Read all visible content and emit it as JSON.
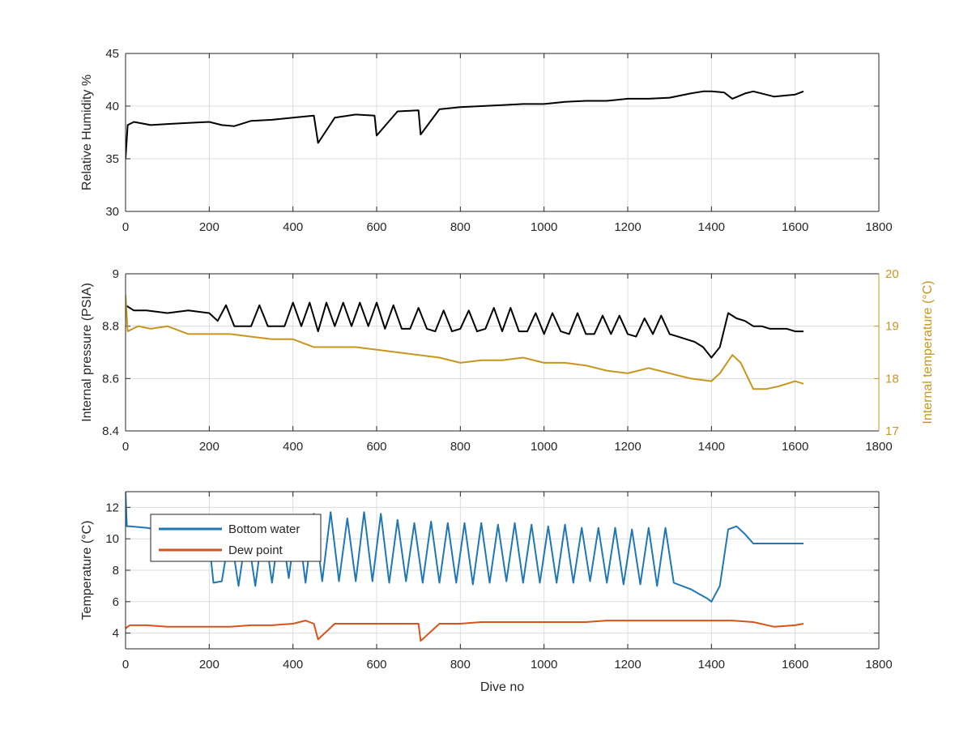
{
  "colors": {
    "axis": "#262626",
    "grid": "#dcdcdc",
    "black": "#000000",
    "gold": "#c8961e",
    "blue": "#1f77b4",
    "orange": "#d95319"
  },
  "chart_data": [
    {
      "type": "line",
      "xlabel": "",
      "ylabel": "Relative Humidity %",
      "xlim": [
        0,
        1800
      ],
      "ylim": [
        30,
        45
      ],
      "xticks": [
        "0",
        "200",
        "400",
        "600",
        "800",
        "1000",
        "1200",
        "1400",
        "1600",
        "1800"
      ],
      "yticks": [
        "30",
        "35",
        "40",
        "45"
      ],
      "grid": true,
      "series": [
        {
          "color": "#000000",
          "x": [
            0,
            5,
            20,
            60,
            100,
            150,
            200,
            230,
            260,
            300,
            350,
            400,
            450,
            460,
            500,
            550,
            595,
            600,
            650,
            700,
            705,
            750,
            800,
            850,
            900,
            950,
            1000,
            1050,
            1100,
            1150,
            1200,
            1250,
            1300,
            1350,
            1380,
            1400,
            1430,
            1450,
            1480,
            1500,
            1550,
            1600,
            1620
          ],
          "y": [
            35,
            38.2,
            38.5,
            38.2,
            38.3,
            38.4,
            38.5,
            38.2,
            38.1,
            38.6,
            38.7,
            38.9,
            39.1,
            36.5,
            38.9,
            39.2,
            39.1,
            37.2,
            39.5,
            39.6,
            37.3,
            39.7,
            39.9,
            40,
            40.1,
            40.2,
            40.2,
            40.4,
            40.5,
            40.5,
            40.7,
            40.7,
            40.8,
            41.2,
            41.4,
            41.4,
            41.3,
            40.7,
            41.2,
            41.4,
            40.9,
            41.1,
            41.4
          ]
        }
      ]
    },
    {
      "type": "line",
      "xlabel": "",
      "ylabel": "Internal pressure (PSIA)",
      "ylabel_right": "Internal temperature (°C)",
      "xlim": [
        0,
        1800
      ],
      "ylim": [
        8.4,
        9
      ],
      "ylim_right": [
        17,
        20
      ],
      "xticks": [
        "0",
        "200",
        "400",
        "600",
        "800",
        "1000",
        "1200",
        "1400",
        "1600",
        "1800"
      ],
      "yticks": [
        "8.4",
        "8.6",
        "8.8",
        "9"
      ],
      "yticks_right": [
        "17",
        "18",
        "19",
        "20"
      ],
      "grid": true,
      "series": [
        {
          "axis": "left",
          "color": "#000000",
          "x": [
            0,
            20,
            50,
            100,
            150,
            200,
            220,
            240,
            260,
            280,
            300,
            320,
            340,
            360,
            380,
            400,
            420,
            440,
            460,
            480,
            500,
            520,
            540,
            560,
            580,
            600,
            620,
            640,
            660,
            680,
            700,
            720,
            740,
            760,
            780,
            800,
            820,
            840,
            860,
            880,
            900,
            920,
            940,
            960,
            980,
            1000,
            1020,
            1040,
            1060,
            1080,
            1100,
            1120,
            1140,
            1160,
            1180,
            1200,
            1220,
            1240,
            1260,
            1280,
            1300,
            1320,
            1340,
            1360,
            1380,
            1400,
            1420,
            1440,
            1460,
            1480,
            1500,
            1520,
            1540,
            1560,
            1580,
            1600,
            1620
          ],
          "y": [
            8.88,
            8.86,
            8.86,
            8.85,
            8.86,
            8.85,
            8.82,
            8.88,
            8.8,
            8.8,
            8.8,
            8.88,
            8.8,
            8.8,
            8.8,
            8.89,
            8.8,
            8.89,
            8.78,
            8.89,
            8.8,
            8.89,
            8.8,
            8.89,
            8.8,
            8.89,
            8.79,
            8.88,
            8.79,
            8.79,
            8.87,
            8.79,
            8.78,
            8.86,
            8.78,
            8.79,
            8.86,
            8.78,
            8.79,
            8.87,
            8.78,
            8.87,
            8.78,
            8.78,
            8.85,
            8.77,
            8.85,
            8.78,
            8.77,
            8.85,
            8.77,
            8.77,
            8.84,
            8.77,
            8.84,
            8.77,
            8.76,
            8.83,
            8.77,
            8.84,
            8.77,
            8.76,
            8.75,
            8.74,
            8.72,
            8.68,
            8.72,
            8.85,
            8.83,
            8.82,
            8.8,
            8.8,
            8.79,
            8.79,
            8.79,
            8.78,
            8.78
          ]
        },
        {
          "axis": "right",
          "color": "#c8961e",
          "x": [
            0,
            5,
            30,
            60,
            100,
            150,
            200,
            250,
            300,
            350,
            400,
            450,
            500,
            550,
            600,
            650,
            700,
            750,
            800,
            850,
            900,
            950,
            1000,
            1050,
            1100,
            1150,
            1200,
            1250,
            1300,
            1350,
            1400,
            1420,
            1450,
            1470,
            1500,
            1530,
            1560,
            1600,
            1620
          ],
          "y": [
            19.6,
            18.9,
            19,
            18.95,
            19,
            18.85,
            18.85,
            18.85,
            18.8,
            18.75,
            18.75,
            18.6,
            18.6,
            18.6,
            18.55,
            18.5,
            18.45,
            18.4,
            18.3,
            18.35,
            18.35,
            18.4,
            18.3,
            18.3,
            18.25,
            18.15,
            18.1,
            18.2,
            18.1,
            18.0,
            17.95,
            18.1,
            18.45,
            18.3,
            17.8,
            17.8,
            17.85,
            17.95,
            17.9
          ]
        }
      ]
    },
    {
      "type": "line",
      "xlabel": "Dive no",
      "ylabel": "Temperature (°C)",
      "xlim": [
        0,
        1800
      ],
      "ylim": [
        3,
        13
      ],
      "xticks": [
        "0",
        "200",
        "400",
        "600",
        "800",
        "1000",
        "1200",
        "1400",
        "1600",
        "1800"
      ],
      "yticks": [
        "4",
        "6",
        "8",
        "10",
        "12"
      ],
      "grid": true,
      "legend": "top-left",
      "series": [
        {
          "name": "Bottom water",
          "color": "#1f77b4",
          "x": [
            0,
            3,
            10,
            50,
            100,
            150,
            200,
            210,
            230,
            250,
            270,
            290,
            310,
            330,
            350,
            370,
            390,
            410,
            430,
            450,
            470,
            490,
            510,
            530,
            550,
            570,
            590,
            610,
            630,
            650,
            670,
            690,
            710,
            730,
            750,
            770,
            790,
            810,
            830,
            850,
            870,
            890,
            910,
            930,
            950,
            970,
            990,
            1010,
            1030,
            1050,
            1070,
            1090,
            1110,
            1130,
            1150,
            1170,
            1190,
            1210,
            1230,
            1250,
            1270,
            1290,
            1310,
            1330,
            1350,
            1370,
            1390,
            1400,
            1420,
            1440,
            1460,
            1480,
            1500,
            1550,
            1600,
            1620
          ],
          "y": [
            13,
            10.8,
            10.8,
            10.7,
            10.5,
            10.2,
            9.8,
            7.2,
            7.3,
            10.5,
            7.0,
            10.6,
            7.0,
            11.0,
            7.2,
            11.2,
            7.5,
            11.5,
            7.2,
            11.6,
            7.3,
            11.7,
            7.3,
            11.3,
            7.3,
            11.7,
            7.3,
            11.6,
            7.2,
            11.2,
            7.3,
            11.0,
            7.2,
            11.1,
            7.2,
            11.0,
            7.2,
            11.0,
            7.1,
            11.0,
            7.2,
            10.9,
            7.3,
            11.0,
            7.2,
            10.9,
            7.2,
            10.8,
            7.2,
            10.9,
            7.2,
            10.7,
            7.3,
            10.7,
            7.2,
            10.7,
            7.1,
            10.6,
            7.1,
            10.7,
            7.0,
            10.7,
            7.2,
            7.0,
            6.8,
            6.5,
            6.2,
            6.0,
            7.0,
            10.6,
            10.8,
            10.3,
            9.7,
            9.7,
            9.7,
            9.7
          ]
        },
        {
          "name": "Dew point",
          "color": "#d95319",
          "x": [
            0,
            10,
            50,
            100,
            150,
            200,
            250,
            300,
            350,
            400,
            430,
            450,
            460,
            500,
            550,
            600,
            650,
            700,
            705,
            750,
            800,
            850,
            900,
            950,
            1000,
            1050,
            1100,
            1150,
            1200,
            1250,
            1300,
            1350,
            1400,
            1450,
            1500,
            1550,
            1600,
            1620
          ],
          "y": [
            4.3,
            4.5,
            4.5,
            4.4,
            4.4,
            4.4,
            4.4,
            4.5,
            4.5,
            4.6,
            4.8,
            4.6,
            3.6,
            4.6,
            4.6,
            4.6,
            4.6,
            4.6,
            3.5,
            4.6,
            4.6,
            4.7,
            4.7,
            4.7,
            4.7,
            4.7,
            4.7,
            4.8,
            4.8,
            4.8,
            4.8,
            4.8,
            4.8,
            4.8,
            4.7,
            4.4,
            4.5,
            4.6
          ]
        }
      ]
    }
  ]
}
